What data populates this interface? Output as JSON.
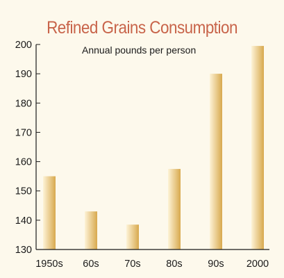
{
  "chart_data": {
    "type": "bar",
    "title": "Refined Grains Consumption",
    "subtitle": "Annual pounds per person",
    "categories": [
      "1950s",
      "60s",
      "70s",
      "80s",
      "90s",
      "2000"
    ],
    "values": [
      155,
      143,
      138.5,
      157.5,
      190,
      199.5
    ],
    "ylim": [
      130,
      200
    ],
    "yticks": [
      130,
      140,
      150,
      160,
      170,
      180,
      190,
      200
    ],
    "xlabel": "",
    "ylabel": "",
    "grid": false,
    "colors": {
      "bar_light": "#fdf3d6",
      "bar_dark": "#d8a94e",
      "title": "#c8644a",
      "axis": "#1a1a1a"
    }
  }
}
